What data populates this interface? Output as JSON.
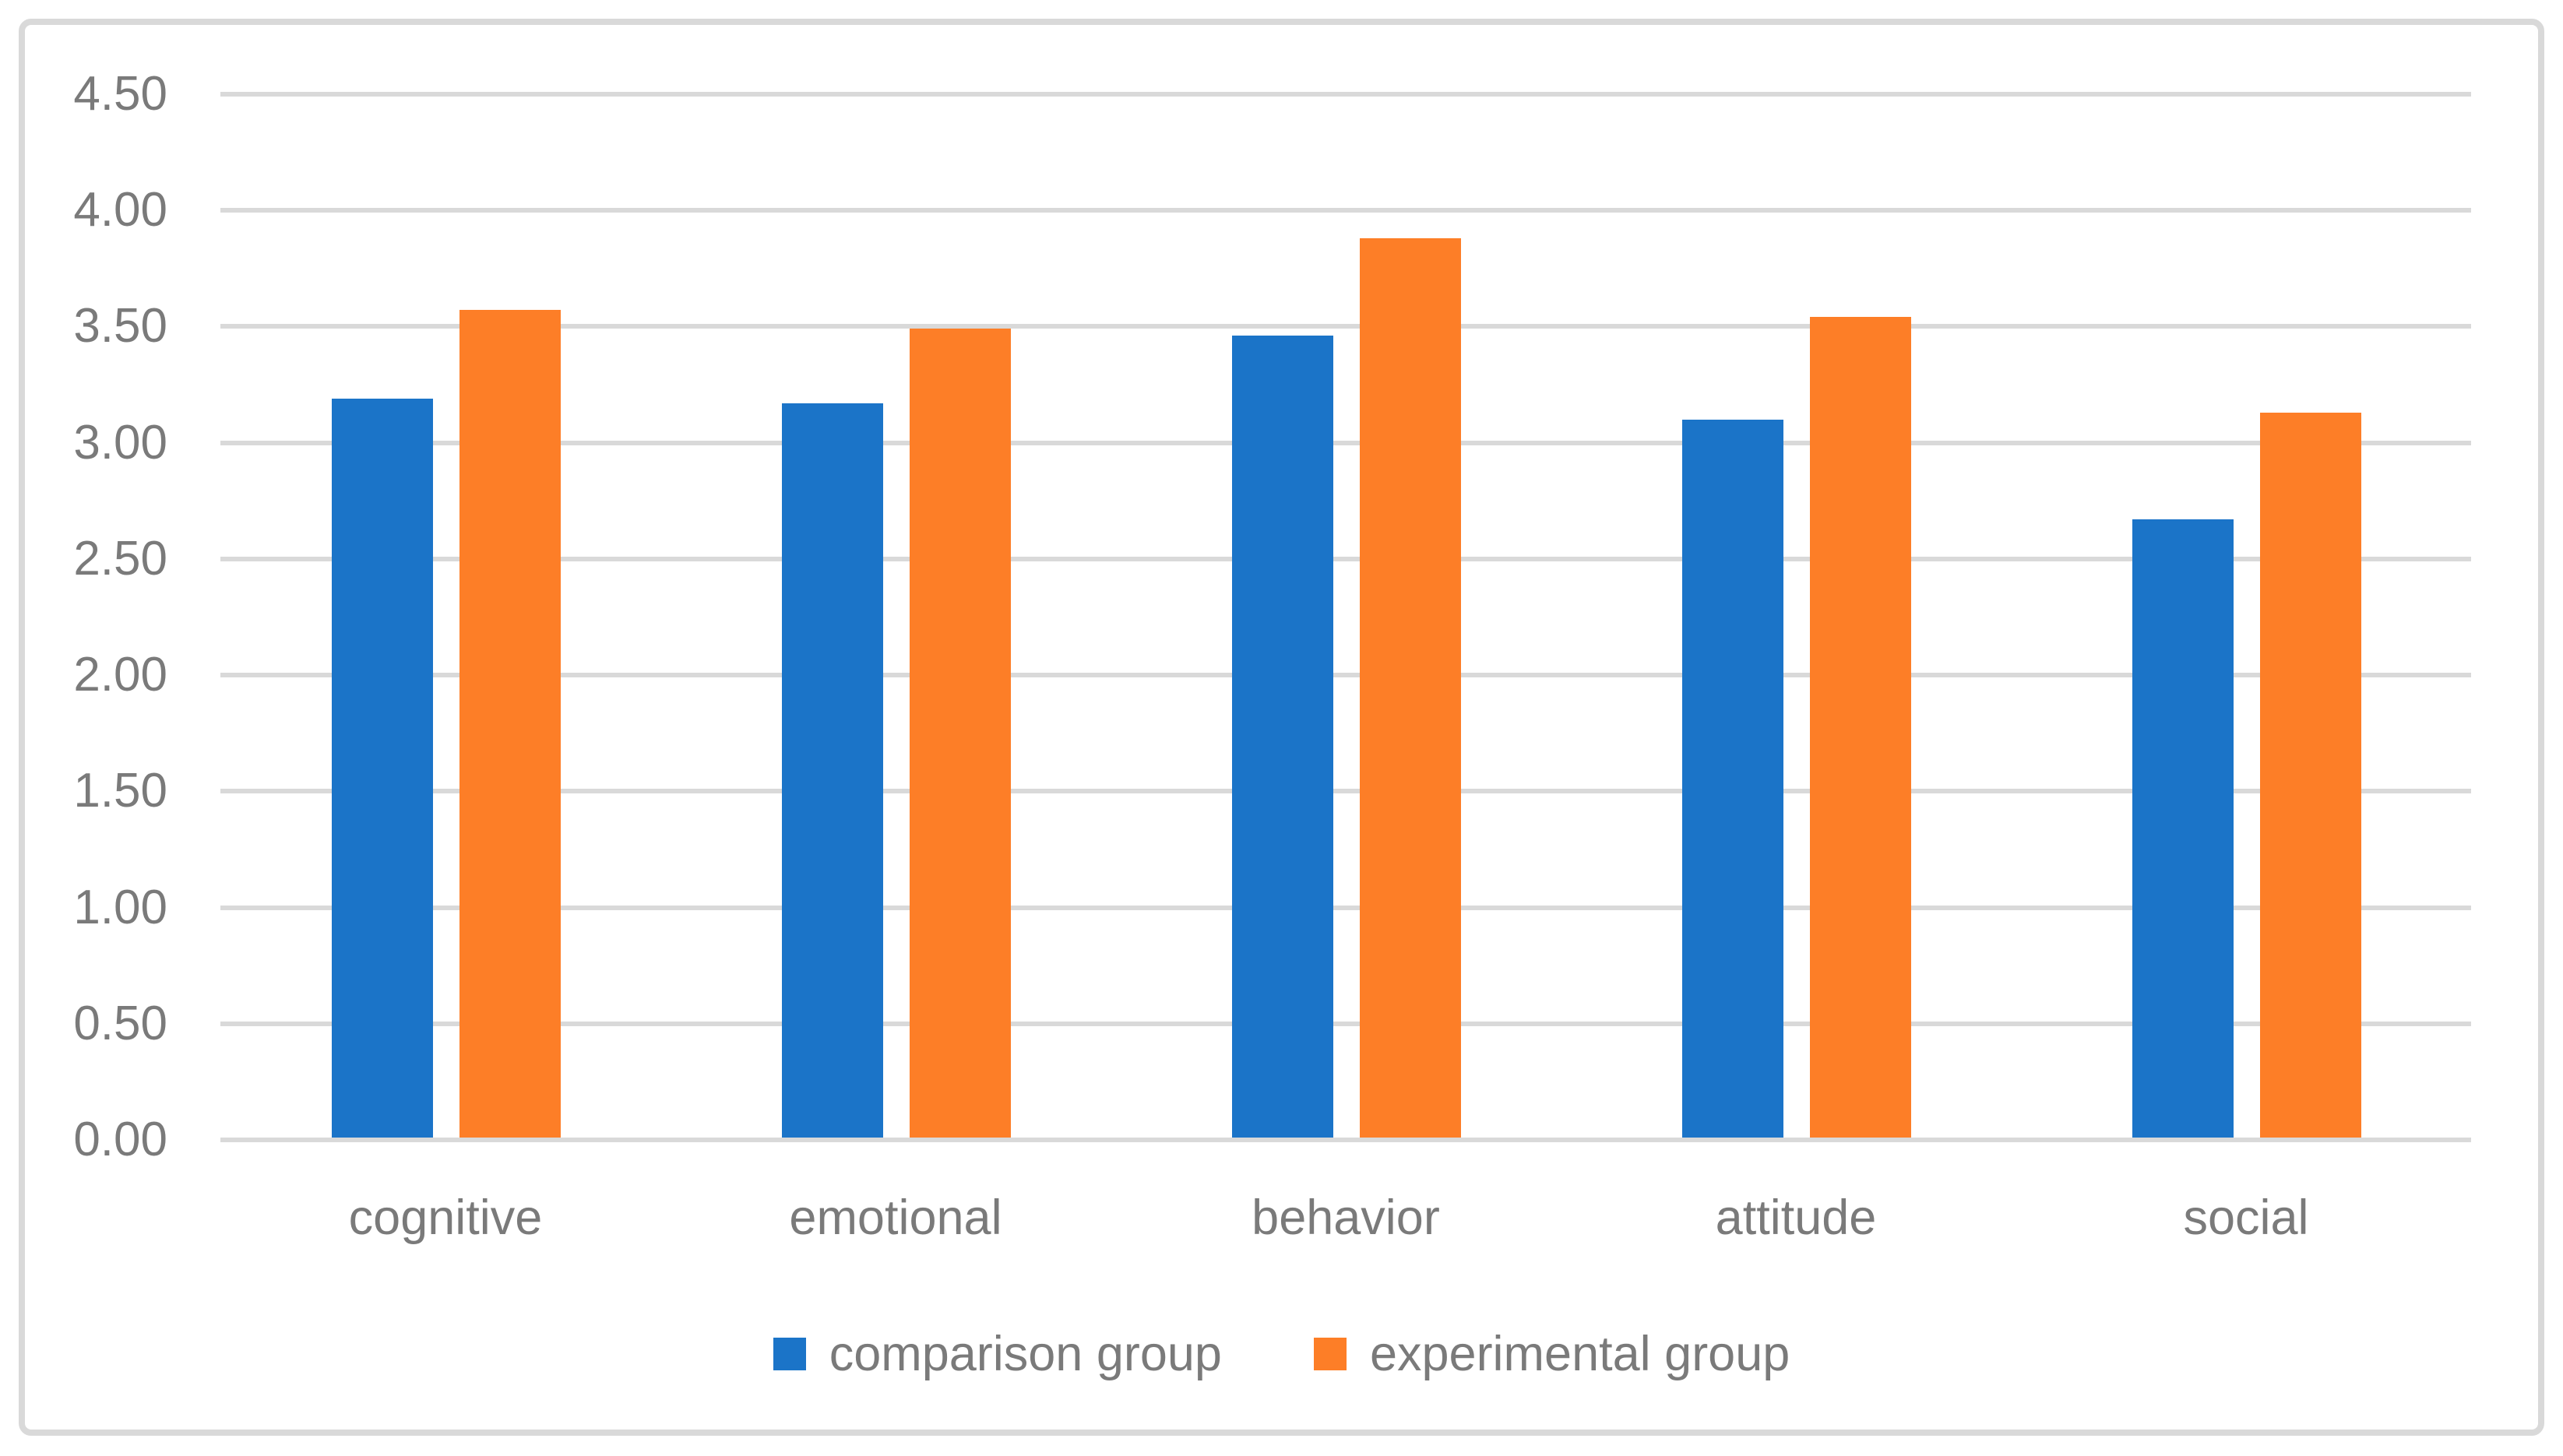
{
  "chart_data": {
    "type": "bar",
    "categories": [
      "cognitive",
      "emotional",
      "behavior",
      "attitude",
      "social"
    ],
    "series": [
      {
        "name": "comparison group",
        "color": "#1B74C8",
        "values": [
          3.19,
          3.17,
          3.46,
          3.1,
          2.67
        ]
      },
      {
        "name": "experimental group",
        "color": "#FD7E27",
        "values": [
          3.57,
          3.49,
          3.88,
          3.54,
          3.13
        ]
      }
    ],
    "title": "",
    "xlabel": "",
    "ylabel": "",
    "ylim": [
      0,
      4.5
    ],
    "ytick_step": 0.5,
    "ytick_labels": [
      "0.00",
      "0.50",
      "1.00",
      "1.50",
      "2.00",
      "2.50",
      "3.00",
      "3.50",
      "4.00",
      "4.50"
    ],
    "grid": "horizontal",
    "legend_position": "bottom"
  },
  "colors": {
    "gridline": "#D9D9D9",
    "chart_border": "#D9D9D9",
    "axis_text": "#7A7A7A",
    "background": "#FFFFFF"
  }
}
